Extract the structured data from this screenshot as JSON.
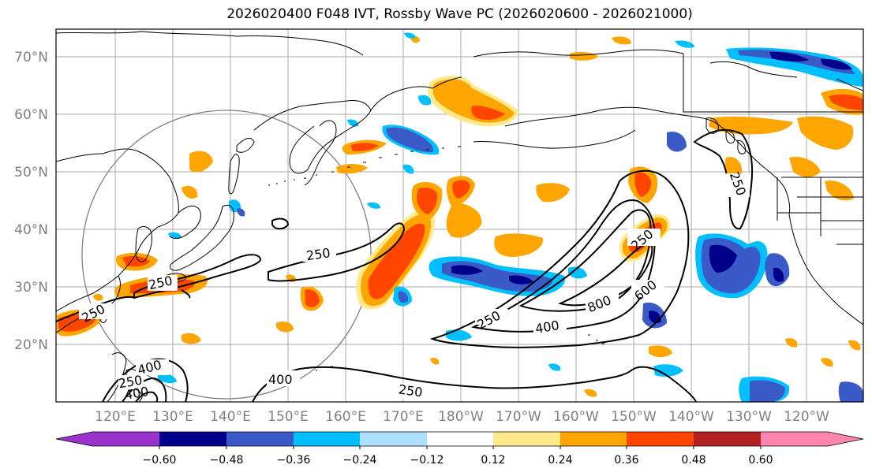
{
  "title": "2026020400 F048 IVT, Rossby Wave PC (2026020600 - 2026021000)",
  "colors": {
    "neg_060": "#9933CC",
    "neg_048": "#00008B",
    "neg_036": "#3A5BC7",
    "neg_024": "#00BFFF",
    "neg_012": "#ADDFFF",
    "neutral": "#FFFFFF",
    "pos_012": "#FFE98A",
    "pos_024": "#FFA500",
    "pos_036": "#FF4500",
    "pos_048": "#B22222",
    "pos_060": "#FF85B0",
    "contour": "#000000",
    "grid": "#AAAAAA",
    "coast": "#000000",
    "circle": "#808080"
  },
  "map": {
    "lat_labels": [
      "70°N",
      "60°N",
      "50°N",
      "40°N",
      "30°N",
      "20°N"
    ],
    "lon_labels": [
      "120°E",
      "130°E",
      "140°E",
      "150°E",
      "160°E",
      "170°E",
      "180°W",
      "170°W",
      "160°W",
      "150°W",
      "140°W",
      "130°W",
      "120°W"
    ],
    "contour_labels": [
      "250",
      "250",
      "250",
      "250",
      "250",
      "250",
      "400",
      "400",
      "400",
      "600",
      "800",
      "250",
      "250",
      "400"
    ]
  },
  "colorbar": {
    "tick_labels": [
      "−0.60",
      "−0.48",
      "−0.36",
      "−0.24",
      "−0.12",
      "0.12",
      "0.24",
      "0.36",
      "0.48",
      "0.60"
    ]
  }
}
